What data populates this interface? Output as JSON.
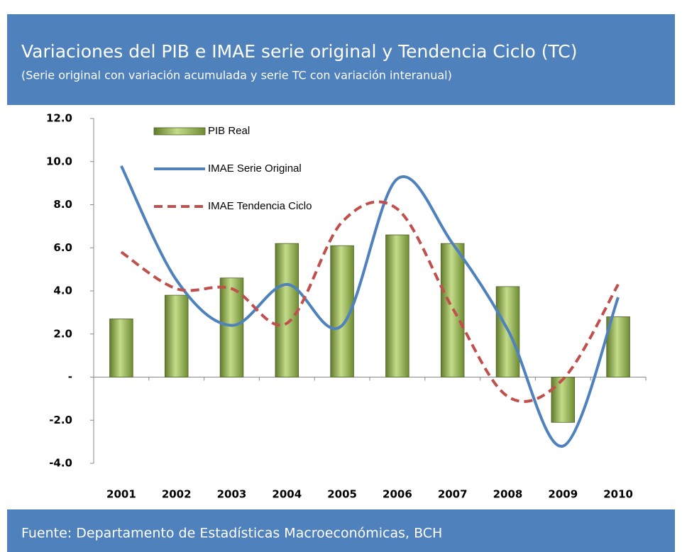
{
  "chart_data": {
    "type": "bar_line",
    "title": "Variaciones del PIB e IMAE serie original y Tendencia  Ciclo (TC)",
    "subtitle": "(Serie original con variación acumulada y serie TC con variación interanual)",
    "source": "Fuente: Departamento de Estadísticas Macroeconómicas, BCH",
    "categories": [
      "2001",
      "2002",
      "2003",
      "2004",
      "2005",
      "2006",
      "2007",
      "2008",
      "2009",
      "2010"
    ],
    "series": [
      {
        "name": "PIB Real",
        "type": "bar",
        "color": "#9bbb59",
        "values": [
          2.7,
          3.8,
          4.6,
          6.2,
          6.1,
          6.6,
          6.2,
          4.2,
          -2.1,
          2.8
        ]
      },
      {
        "name": "IMAE Serie Original",
        "type": "line",
        "color": "#4f81bd",
        "values": [
          9.8,
          4.5,
          2.4,
          4.3,
          2.4,
          9.2,
          6.2,
          2.2,
          -3.2,
          3.7
        ]
      },
      {
        "name": "IMAE Tendencia Ciclo",
        "type": "line",
        "dashed": true,
        "color": "#c0504d",
        "values": [
          5.8,
          4.1,
          4.1,
          2.5,
          7.2,
          7.8,
          3.2,
          -0.9,
          -0.1,
          4.3
        ]
      }
    ],
    "ylim": [
      -4,
      12
    ],
    "yticks": [
      {
        "value": -4,
        "label": "-4.0"
      },
      {
        "value": -2,
        "label": "-2.0"
      },
      {
        "value": 0,
        "label": "-"
      },
      {
        "value": 2,
        "label": "2.0"
      },
      {
        "value": 4,
        "label": "4.0"
      },
      {
        "value": 6,
        "label": "6.0"
      },
      {
        "value": 8,
        "label": "8.0"
      },
      {
        "value": 10,
        "label": "10.0"
      },
      {
        "value": 12,
        "label": "12.0"
      }
    ],
    "grid": false,
    "legend": "upper left"
  }
}
